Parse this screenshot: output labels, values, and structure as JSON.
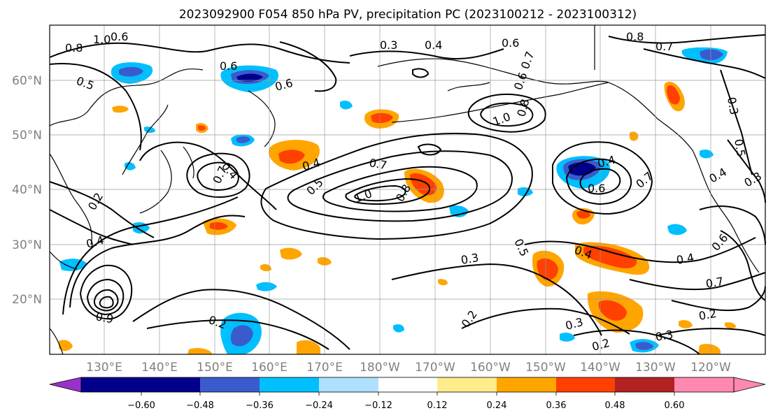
{
  "map": {
    "title": "2023092900 F054 850 hPa PV, precipitation PC (2023100212 - 2023100312)",
    "lat_labels": [
      "60°N",
      "50°N",
      "40°N",
      "30°N",
      "20°N"
    ],
    "lon_labels": [
      "130°E",
      "140°E",
      "150°E",
      "160°E",
      "170°E",
      "180°W",
      "170°W",
      "160°W",
      "150°W",
      "140°W",
      "130°W",
      "120°W"
    ],
    "contour_labels": [
      "0.8",
      "1.0",
      "0.6",
      "0.5",
      "0.6",
      "0.3",
      "0.4",
      "0.6",
      "0.8",
      "0.7",
      "0.3",
      "1.0",
      "0.8",
      "0.7",
      "0.6",
      "0.6",
      "0.4",
      "0.7",
      "1.0",
      "0.8",
      "0.5",
      "0.4",
      "0.6",
      "0.7",
      "0.2",
      "0.4",
      "0.3",
      "0.4",
      "0.5",
      "0.4",
      "0.6",
      "0.7",
      "0.4",
      "0.3",
      "0.2",
      "0.3",
      "0.2",
      "0.2",
      "0.2",
      "0.7",
      "0.4",
      "0.9",
      "0.5",
      "0.3"
    ],
    "colorbar": {
      "ticks": [
        "−0.60",
        "−0.48",
        "−0.36",
        "−0.24",
        "−0.12",
        "0.12",
        "0.24",
        "0.36",
        "0.48",
        "0.60"
      ],
      "colors": [
        "#9932cc",
        "#00008b",
        "#3a5bcc",
        "#00bfff",
        "#b0e0ff",
        "#ffffff",
        "#ffec8b",
        "#ffa500",
        "#ff4000",
        "#b22222",
        "#ff88b0"
      ]
    }
  }
}
